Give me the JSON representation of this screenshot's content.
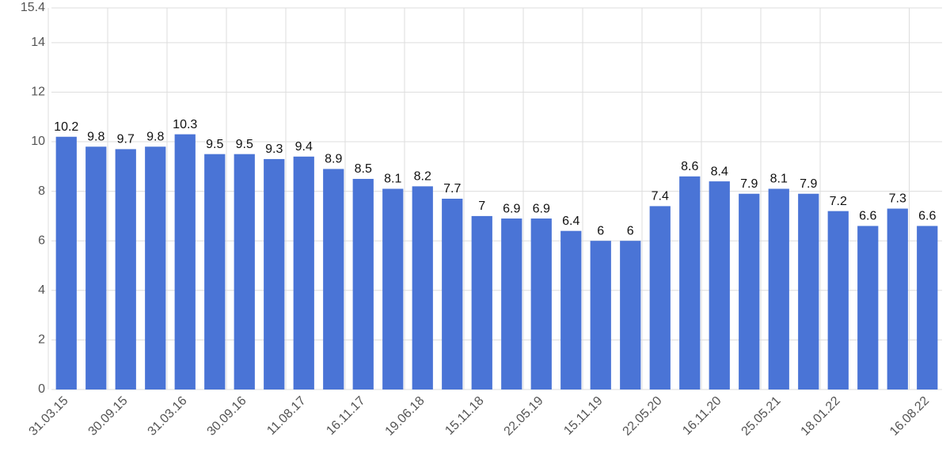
{
  "chart_data": {
    "type": "bar",
    "categories": [
      "31.03.15",
      null,
      "30.09.15",
      null,
      "31.03.16",
      null,
      "30.09.16",
      null,
      "11.08.17",
      null,
      "16.11.17",
      null,
      "19.06.18",
      null,
      "15.11.18",
      null,
      "22.05.19",
      null,
      "15.11.19",
      null,
      "22.05.20",
      null,
      "16.11.20",
      null,
      "25.05.21",
      null,
      "18.01.22",
      null,
      null,
      "16.08.22"
    ],
    "values": [
      10.2,
      9.8,
      9.7,
      9.8,
      10.3,
      9.5,
      9.5,
      9.3,
      9.4,
      8.9,
      8.5,
      8.1,
      8.2,
      7.7,
      7,
      6.9,
      6.9,
      6.4,
      6,
      6,
      7.4,
      8.6,
      8.4,
      7.9,
      8.1,
      7.9,
      7.2,
      6.6,
      7.3,
      6.6
    ],
    "color": "#4a74d6",
    "ylim": [
      0,
      15.4
    ],
    "yticks": [
      0,
      2,
      4,
      6,
      8,
      10,
      12,
      14,
      15.4
    ],
    "grid": true
  }
}
